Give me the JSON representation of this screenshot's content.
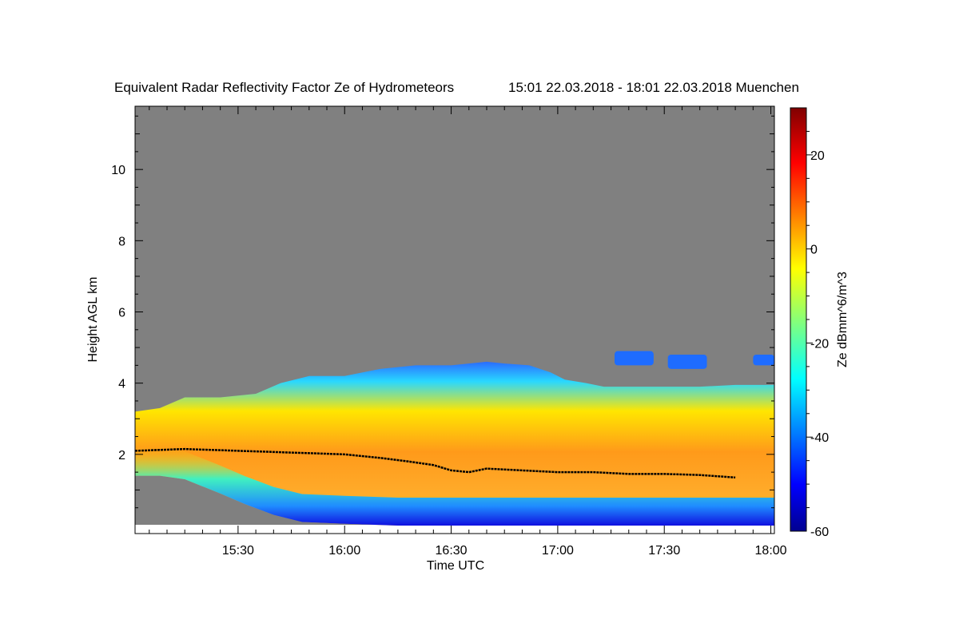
{
  "chart_data": {
    "type": "heatmap",
    "title": "Equivalent Radar Reflectivity Factor Ze of Hydrometeors",
    "subtitle": "15:01 22.03.2018 - 18:01 22.03.2018 Muenchen",
    "xlabel": "Time UTC",
    "ylabel": "Height AGL km",
    "x_ticks": [
      "15:30",
      "16:00",
      "16:30",
      "17:00",
      "17:30",
      "18:00"
    ],
    "x_tick_minutes": [
      30,
      60,
      90,
      120,
      150,
      180
    ],
    "xlim_minutes": [
      1,
      181
    ],
    "ylim": [
      0,
      12
    ],
    "y_ticks": [
      2,
      4,
      6,
      8,
      10
    ],
    "colorbar": {
      "label": "Ze dBmm^6/m^3",
      "ticks": [
        -60,
        -40,
        -20,
        0,
        20
      ],
      "range": [
        -60,
        30
      ],
      "colormap": "jet"
    },
    "background_color": "#808080",
    "cloud_top_km": [
      [
        1,
        3.2
      ],
      [
        8,
        3.3
      ],
      [
        15,
        3.6
      ],
      [
        25,
        3.6
      ],
      [
        35,
        3.7
      ],
      [
        42,
        4.0
      ],
      [
        50,
        4.2
      ],
      [
        60,
        4.2
      ],
      [
        70,
        4.4
      ],
      [
        80,
        4.5
      ],
      [
        90,
        4.5
      ],
      [
        100,
        4.6
      ],
      [
        105,
        4.55
      ],
      [
        112,
        4.5
      ],
      [
        118,
        4.3
      ],
      [
        122,
        4.1
      ],
      [
        128,
        4.0
      ],
      [
        133,
        3.9
      ],
      [
        140,
        3.9
      ],
      [
        150,
        3.9
      ],
      [
        160,
        3.9
      ],
      [
        170,
        3.95
      ],
      [
        181,
        3.95
      ]
    ],
    "cloud_base_km": [
      [
        1,
        1.4
      ],
      [
        8,
        1.4
      ],
      [
        15,
        1.3
      ],
      [
        20,
        1.1
      ],
      [
        25,
        0.9
      ],
      [
        32,
        0.6
      ],
      [
        40,
        0.3
      ],
      [
        48,
        0.1
      ],
      [
        60,
        0.05
      ],
      [
        75,
        0.0
      ],
      [
        181,
        0.0
      ]
    ],
    "melting_layer_km": [
      [
        1,
        2.1
      ],
      [
        15,
        2.15
      ],
      [
        30,
        2.1
      ],
      [
        45,
        2.05
      ],
      [
        60,
        2.0
      ],
      [
        70,
        1.9
      ],
      [
        78,
        1.8
      ],
      [
        85,
        1.7
      ],
      [
        90,
        1.55
      ],
      [
        95,
        1.5
      ],
      [
        100,
        1.6
      ],
      [
        110,
        1.55
      ],
      [
        120,
        1.5
      ],
      [
        130,
        1.5
      ],
      [
        140,
        1.45
      ],
      [
        150,
        1.45
      ],
      [
        160,
        1.42
      ],
      [
        170,
        1.35
      ]
    ],
    "upper_cloud_patches": [
      {
        "t": [
          136,
          147
        ],
        "h": [
          4.5,
          4.9
        ]
      },
      {
        "t": [
          151,
          162
        ],
        "h": [
          4.4,
          4.8
        ]
      },
      {
        "t": [
          175,
          181
        ],
        "h": [
          4.5,
          4.8
        ]
      }
    ]
  }
}
